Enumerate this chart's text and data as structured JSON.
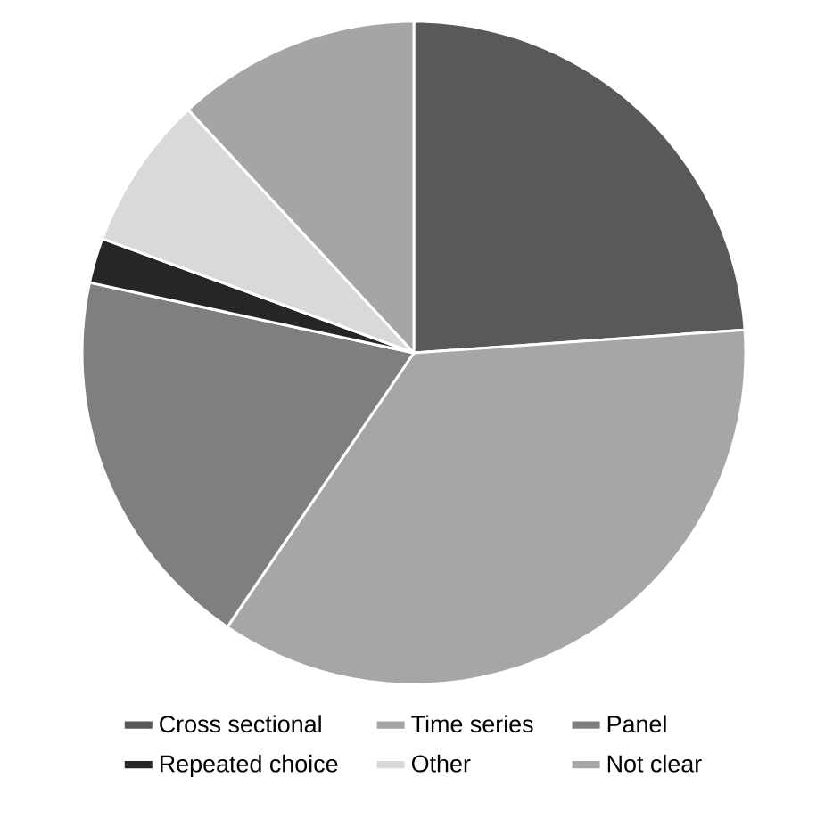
{
  "chart_data": {
    "type": "pie",
    "categories": [
      "Cross sectional",
      "Time series",
      "Panel",
      "Repeated choice",
      "Other",
      "Not clear"
    ],
    "values": [
      23.9,
      35.6,
      18.9,
      2.2,
      7.5,
      11.9
    ],
    "colors": [
      "#595959",
      "#a6a6a6",
      "#7f7f7f",
      "#262626",
      "#d9d9d9",
      "#a5a5a5"
    ],
    "legend": "bottom"
  }
}
